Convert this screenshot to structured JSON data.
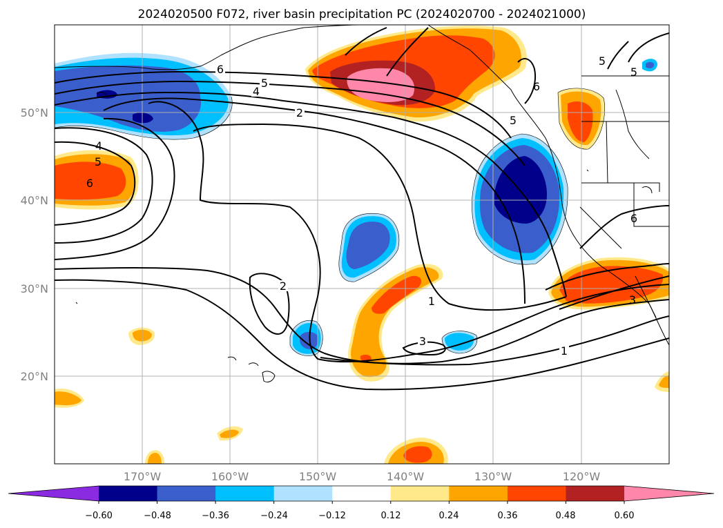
{
  "title": "2024020500 F072, river basin precipitation PC (2024020700 - 2024021000)",
  "map": {
    "lat_labels": [
      "50°N",
      "40°N",
      "30°N",
      "20°N"
    ],
    "lon_labels": [
      "170°W",
      "160°W",
      "150°W",
      "140°W",
      "130°W",
      "120°W"
    ],
    "lat_range": [
      10,
      60
    ],
    "lon_range": [
      -180,
      -110
    ],
    "gridlines": true
  },
  "colorbar": {
    "orientation": "horizontal",
    "extend": "both",
    "colors": [
      "#8a2be2",
      "#00008b",
      "#3a5fcd",
      "#00bfff",
      "#b0e2ff",
      "#ffffff",
      "#ffe98a",
      "#ffa500",
      "#ff4500",
      "#b22222",
      "#ff88aa"
    ],
    "tick_labels": [
      "−0.60",
      "−0.48",
      "−0.36",
      "−0.24",
      "−0.12",
      "0.12",
      "0.24",
      "0.36",
      "0.48",
      "0.60"
    ]
  },
  "contour_labels": [
    {
      "id": "nw-6",
      "text": "6"
    },
    {
      "id": "nw-5",
      "text": "5"
    },
    {
      "id": "nw-4",
      "text": "4"
    },
    {
      "id": "nw-2",
      "text": "2"
    },
    {
      "id": "w-4",
      "text": "4"
    },
    {
      "id": "w-5",
      "text": "5"
    },
    {
      "id": "w-6",
      "text": "6"
    },
    {
      "id": "c-2",
      "text": "2"
    },
    {
      "id": "c-1",
      "text": "1"
    },
    {
      "id": "c-3",
      "text": "3"
    },
    {
      "id": "s-1",
      "text": "1"
    },
    {
      "id": "e-5",
      "text": "5"
    },
    {
      "id": "ne-6",
      "text": "6"
    },
    {
      "id": "ne-5a",
      "text": "5"
    },
    {
      "id": "ne-5b",
      "text": "5"
    },
    {
      "id": "ca-6",
      "text": "6"
    },
    {
      "id": "se-3",
      "text": "3"
    }
  ]
}
